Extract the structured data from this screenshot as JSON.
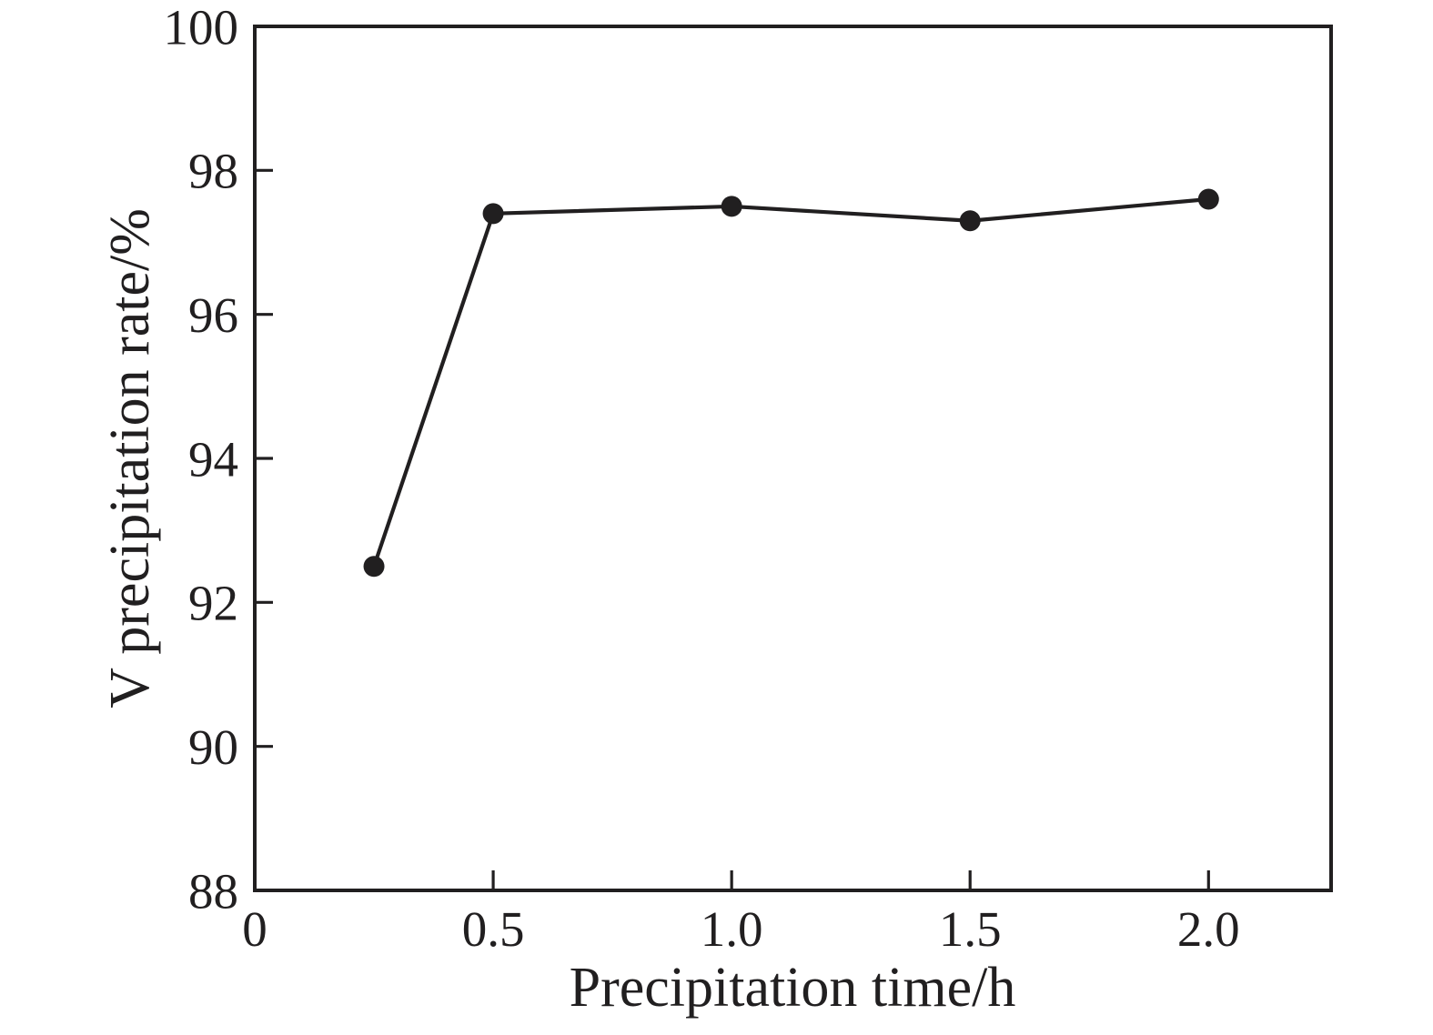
{
  "chart_data": {
    "type": "line",
    "title": "",
    "xlabel": "Precipitation time/h",
    "ylabel": "V precipitation rate/%",
    "x": [
      0.25,
      0.5,
      1.0,
      1.5,
      2.0
    ],
    "series": [
      {
        "name": "V precipitation rate",
        "values": [
          92.5,
          97.4,
          97.5,
          97.3,
          97.6
        ]
      }
    ],
    "xlim": [
      0,
      2.257
    ],
    "ylim": [
      88,
      100
    ],
    "x_ticks": [
      0,
      0.5,
      1.0,
      1.5,
      2.0
    ],
    "x_tick_labels": [
      "0",
      "0.5",
      "1.0",
      "1.5",
      "2.0"
    ],
    "y_ticks": [
      88,
      90,
      92,
      94,
      96,
      98,
      100
    ],
    "y_tick_labels": [
      "88",
      "90",
      "92",
      "94",
      "96",
      "98",
      "100"
    ],
    "grid": false,
    "legend_position": "none",
    "tick_direction": "in",
    "marker": "circle",
    "line_color": "#211f20",
    "marker_color": "#211f20",
    "background_color": "#ffffff"
  }
}
